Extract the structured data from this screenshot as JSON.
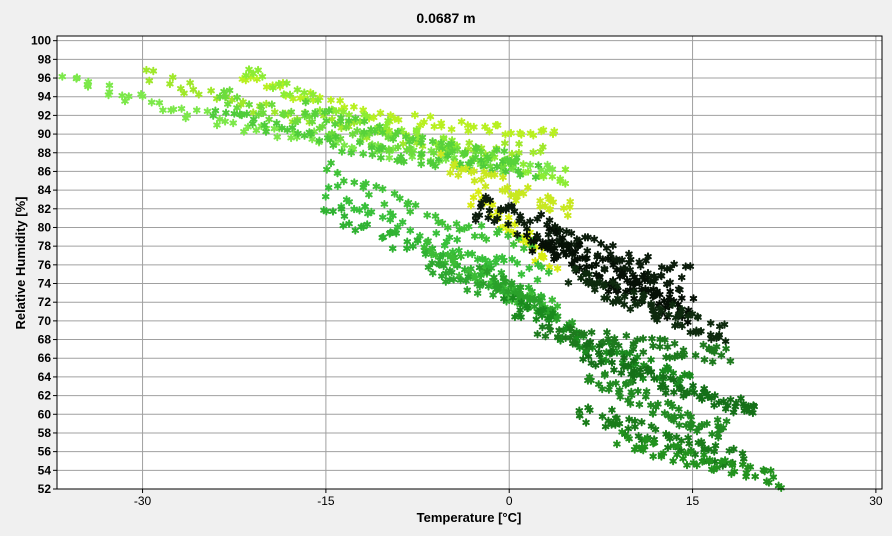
{
  "chart_data": {
    "type": "scatter",
    "title": "0.0687 m",
    "xlabel": "Temperature [°C]",
    "ylabel": "Relative Humidity [%]",
    "xlim": [
      -37,
      30.5
    ],
    "ylim": [
      52,
      100.5
    ],
    "xticks": [
      -30,
      -15,
      0,
      15,
      30
    ],
    "yticks": [
      52,
      54,
      56,
      58,
      60,
      62,
      64,
      66,
      68,
      70,
      72,
      74,
      76,
      78,
      80,
      82,
      84,
      86,
      88,
      90,
      92,
      94,
      96,
      98,
      100
    ],
    "grid": true,
    "marker": "asterisk",
    "background": "#ffffff",
    "grid_color": "#a0a0a0",
    "clusters": [
      {
        "color": "#7ce84a",
        "start": [
          -36.5,
          96.0
        ],
        "end": [
          4.0,
          86.0
        ],
        "curve": -1.5,
        "width": 0.7,
        "count": 80
      },
      {
        "color": "#9fe82a",
        "start": [
          -30.0,
          96.5
        ],
        "end": [
          3.0,
          88.0
        ],
        "curve": -1.5,
        "width": 0.7,
        "count": 60
      },
      {
        "color": "#b8f020",
        "start": [
          -22.0,
          96.0
        ],
        "end": [
          4.0,
          90.0
        ],
        "curve": -1.2,
        "width": 0.6,
        "count": 55
      },
      {
        "color": "#8cec34",
        "start": [
          -22.0,
          96.5
        ],
        "end": [
          5.0,
          85.5
        ],
        "curve": -1.0,
        "width": 0.8,
        "count": 60
      },
      {
        "color": "#6cdc3c",
        "start": [
          -24.0,
          94.5
        ],
        "end": [
          0.0,
          87.0
        ],
        "curve": -1.2,
        "width": 0.7,
        "count": 60
      },
      {
        "color": "#4fcc3a",
        "start": [
          -24.0,
          92.5
        ],
        "end": [
          2.0,
          86.0
        ],
        "curve": -1.0,
        "width": 0.7,
        "count": 60
      },
      {
        "color": "#58d23a",
        "start": [
          -17.0,
          93.0
        ],
        "end": [
          1.0,
          87.5
        ],
        "curve": -0.8,
        "width": 0.6,
        "count": 45
      },
      {
        "color": "#c8e820",
        "start": [
          -5.0,
          87.0
        ],
        "end": [
          5.0,
          82.0
        ],
        "curve": -0.5,
        "width": 0.9,
        "count": 40
      },
      {
        "color": "#d8ec10",
        "start": [
          -3.0,
          83.5
        ],
        "end": [
          3.5,
          76.0
        ],
        "curve": 0.0,
        "width": 0.8,
        "count": 35
      },
      {
        "color": "#40c238",
        "start": [
          -15.0,
          86.5
        ],
        "end": [
          2.0,
          78.0
        ],
        "curve": -0.8,
        "width": 0.7,
        "count": 40
      },
      {
        "color": "#38c03a",
        "start": [
          -15.0,
          84.0
        ],
        "end": [
          3.0,
          75.0
        ],
        "curve": -0.8,
        "width": 0.8,
        "count": 50
      },
      {
        "color": "#30b232",
        "start": [
          -15.0,
          82.0
        ],
        "end": [
          3.0,
          73.0
        ],
        "curve": -0.6,
        "width": 0.8,
        "count": 50
      },
      {
        "color": "#3cbc36",
        "start": [
          -7.0,
          78.0
        ],
        "end": [
          4.0,
          71.0
        ],
        "curve": -0.4,
        "width": 0.8,
        "count": 45
      },
      {
        "color": "#2ea830",
        "start": [
          -7.0,
          76.0
        ],
        "end": [
          2.0,
          72.0
        ],
        "curve": -0.3,
        "width": 0.8,
        "count": 35
      },
      {
        "color": "#2aa02a",
        "start": [
          -2.0,
          75.0
        ],
        "end": [
          5.0,
          70.0
        ],
        "curve": -0.3,
        "width": 0.7,
        "count": 35
      },
      {
        "color": "#0c1c0c",
        "start": [
          -2.5,
          82.5
        ],
        "end": [
          14.0,
          74.5
        ],
        "curve": -0.6,
        "width": 1.3,
        "count": 110
      },
      {
        "color": "#061006",
        "start": [
          2.0,
          79.0
        ],
        "end": [
          15.0,
          71.0
        ],
        "curve": -0.4,
        "width": 1.3,
        "count": 100
      },
      {
        "color": "#0e2a0e",
        "start": [
          5.0,
          75.0
        ],
        "end": [
          18.0,
          68.5
        ],
        "curve": -0.3,
        "width": 1.0,
        "count": 70
      },
      {
        "color": "#1a8a1e",
        "start": [
          0.0,
          72.0
        ],
        "end": [
          15.0,
          63.0
        ],
        "curve": -0.6,
        "width": 1.0,
        "count": 70
      },
      {
        "color": "#1e7a1e",
        "start": [
          2.5,
          69.0
        ],
        "end": [
          18.0,
          66.5
        ],
        "curve": -0.4,
        "width": 0.9,
        "count": 60
      },
      {
        "color": "#157018",
        "start": [
          6.0,
          67.0
        ],
        "end": [
          20.5,
          60.0
        ],
        "curve": -0.4,
        "width": 0.9,
        "count": 70
      },
      {
        "color": "#228a22",
        "start": [
          7.0,
          64.0
        ],
        "end": [
          18.0,
          58.0
        ],
        "curve": -0.3,
        "width": 1.0,
        "count": 60
      },
      {
        "color": "#1a7c1a",
        "start": [
          6.0,
          60.5
        ],
        "end": [
          19.0,
          55.0
        ],
        "curve": -0.3,
        "width": 0.9,
        "count": 60
      },
      {
        "color": "#22921e",
        "start": [
          9.0,
          57.5
        ],
        "end": [
          22.0,
          53.0
        ],
        "curve": -0.2,
        "width": 0.8,
        "count": 55
      }
    ]
  }
}
